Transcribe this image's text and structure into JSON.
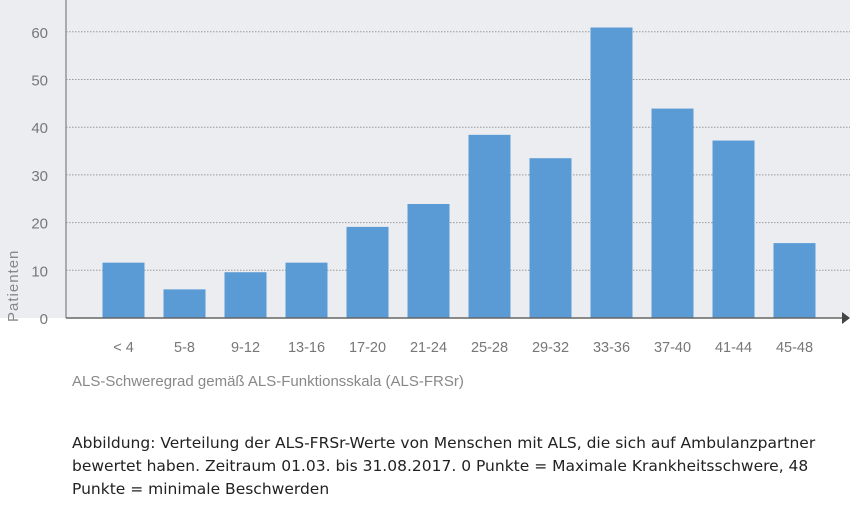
{
  "chart_data": {
    "type": "bar",
    "title": "",
    "xlabel": "ALS-Schweregrad gemäß ALS-Funktionsskala (ALS-FRSr)",
    "ylabel": "Patienten",
    "categories": [
      "< 4",
      "5-8",
      "9-12",
      "13-16",
      "17-20",
      "21-24",
      "25-28",
      "29-32",
      "33-36",
      "37-40",
      "41-44",
      "45-48"
    ],
    "values": [
      11.6,
      6,
      9.6,
      11.6,
      19.1,
      23.9,
      38.4,
      33.5,
      60.9,
      43.9,
      37.2,
      15.7
    ],
    "yticks": [
      "0",
      "10",
      "20",
      "30",
      "40",
      "50",
      "60"
    ],
    "ylim": [
      0,
      67
    ],
    "grid": true,
    "bar_color": "#5b9bd5",
    "background": "#ebedf0"
  },
  "caption": "Abbildung: Verteilung der ALS-FRSr-Werte von Menschen mit ALS, die sich auf Ambulanzpartner bewertet haben. Zeitraum 01.03. bis 31.08.2017. 0 Punkte = Maximale Krankheitsschwere, 48 Punkte = minimale Beschwerden"
}
